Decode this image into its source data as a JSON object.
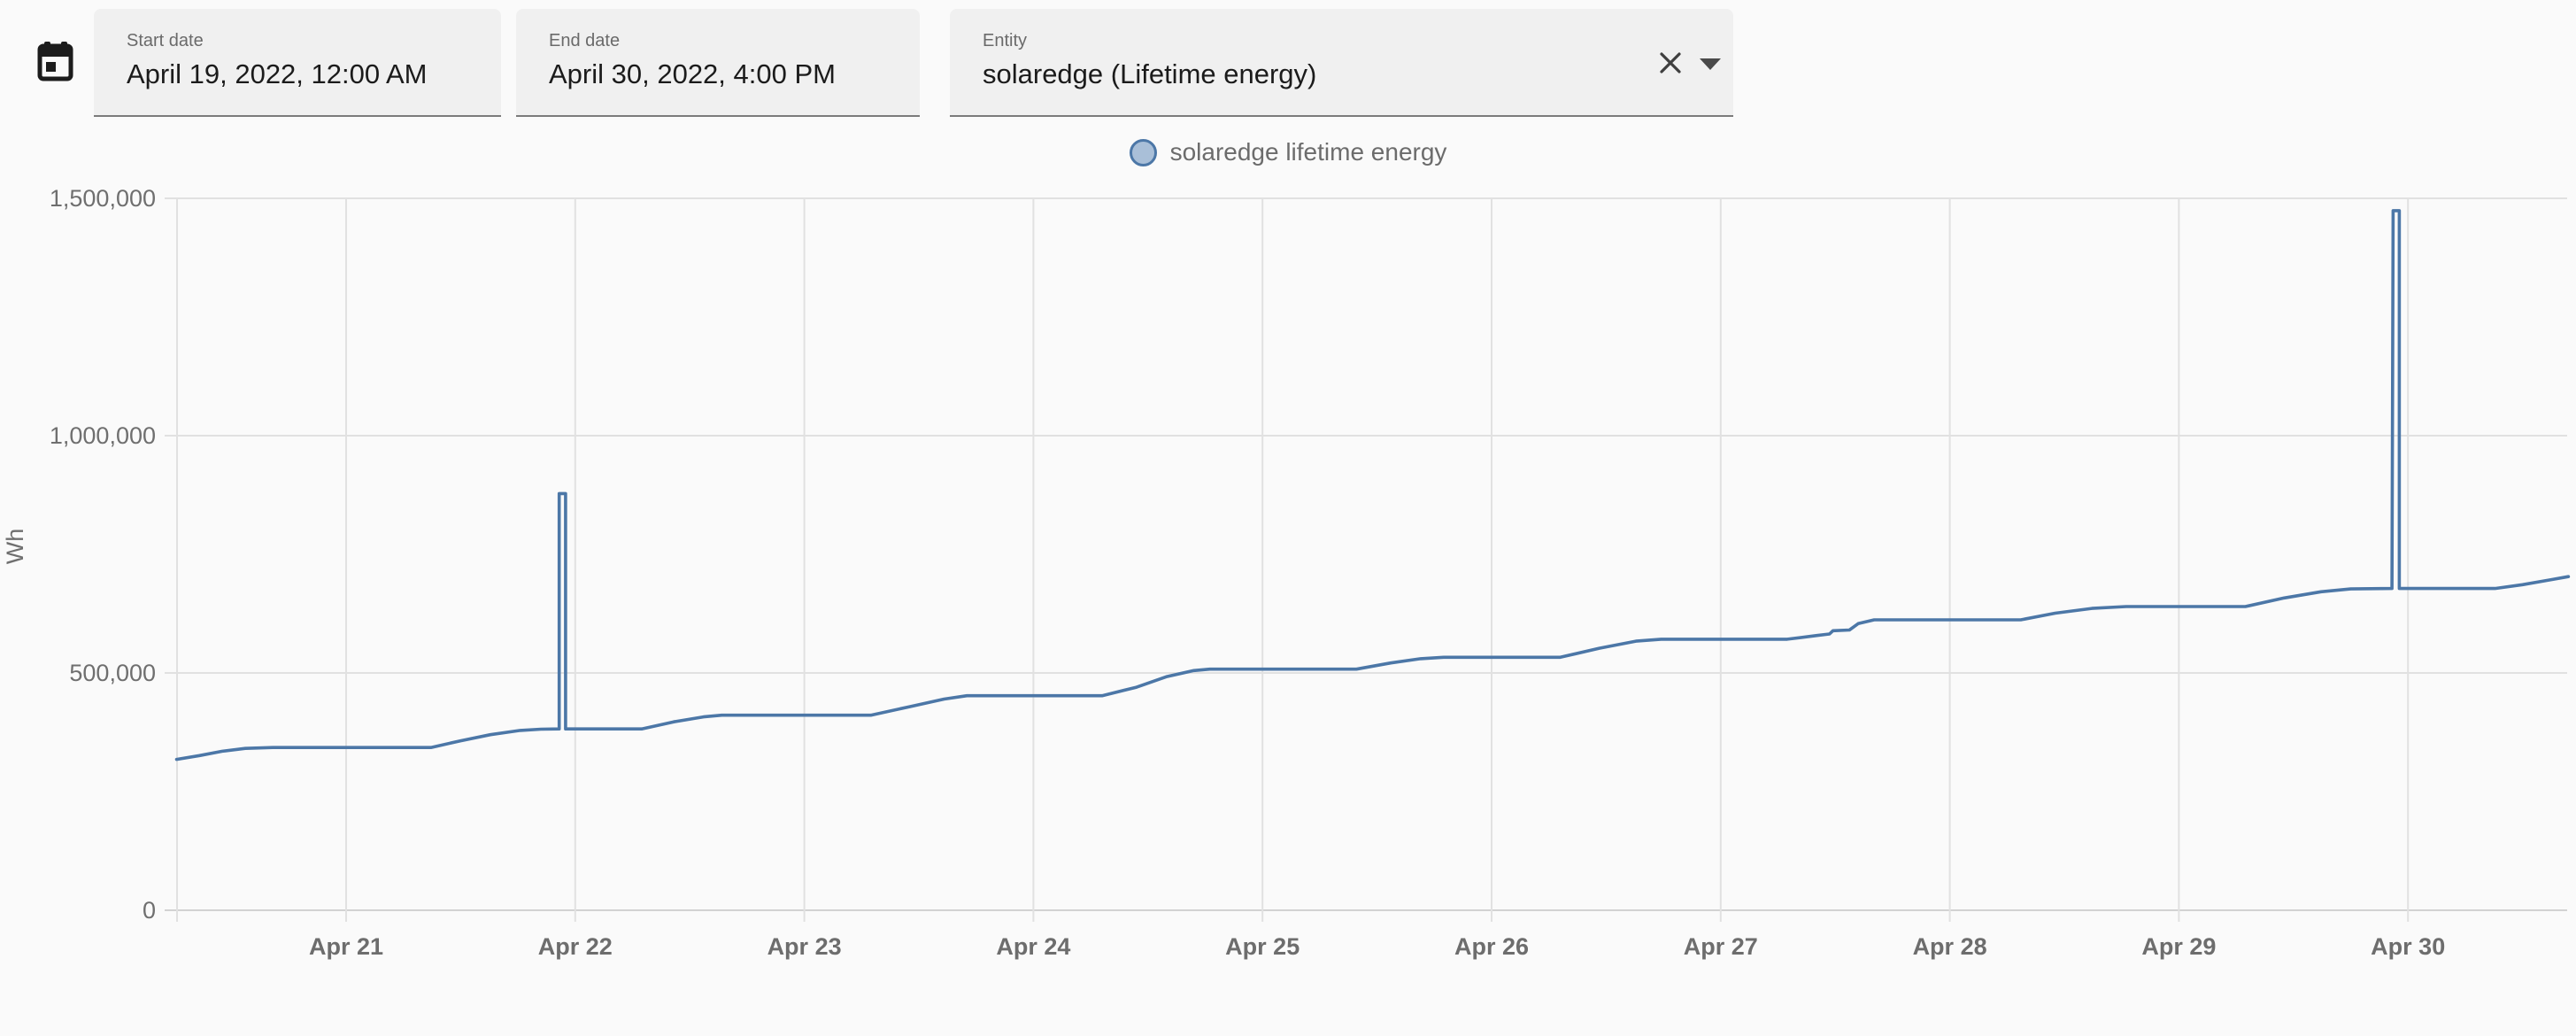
{
  "header": {
    "calendar_icon": "calendar-icon",
    "start_date": {
      "label": "Start date",
      "value": "April 19, 2022, 12:00 AM"
    },
    "end_date": {
      "label": "End date",
      "value": "April 30, 2022, 4:00 PM"
    },
    "entity": {
      "label": "Entity",
      "value": "solaredge (Lifetime energy)",
      "clear_icon": "close-x-icon",
      "dropdown_icon": "caret-down-icon"
    }
  },
  "legend": {
    "marker": "circle",
    "label": "solaredge lifetime energy"
  },
  "colors": {
    "page_bg": "#fafafa",
    "field_bg": "#f0f0f0",
    "field_underline": "#7b7b7b",
    "icon": "#1c1c1c",
    "series_line": "#4c77a7",
    "legend_fill": "#a9bfd8",
    "gridline": "#e1e1e1",
    "axis_line": "#d2d2d2",
    "tick_text": "#6f6f6f"
  },
  "chart_data": {
    "type": "line",
    "title": "",
    "xlabel": "",
    "ylabel": "Wh",
    "unit": "Wh",
    "grid": true,
    "legend_position": "top-center",
    "ylim": [
      0,
      1500000
    ],
    "x_range_days_since_apr20": [
      0.26,
      10.7
    ],
    "x_axis_kind": "time",
    "y_ticks": [
      {
        "v": 0,
        "label": "0"
      },
      {
        "v": 500000,
        "label": "500,000"
      },
      {
        "v": 1000000,
        "label": "1,000,000"
      },
      {
        "v": 1500000,
        "label": "1,500,000"
      }
    ],
    "x_ticks": [
      {
        "t": 1,
        "label": "Apr 21"
      },
      {
        "t": 2,
        "label": "Apr 22"
      },
      {
        "t": 3,
        "label": "Apr 23"
      },
      {
        "t": 4,
        "label": "Apr 24"
      },
      {
        "t": 5,
        "label": "Apr 25"
      },
      {
        "t": 6,
        "label": "Apr 26"
      },
      {
        "t": 7,
        "label": "Apr 27"
      },
      {
        "t": 8,
        "label": "Apr 28"
      },
      {
        "t": 9,
        "label": "Apr 29"
      },
      {
        "t": 10,
        "label": "Apr 30"
      }
    ],
    "series": [
      {
        "name": "solaredge lifetime energy",
        "color": "#4c77a7",
        "points": [
          [
            0.26,
            318000
          ],
          [
            0.36,
            326000
          ],
          [
            0.46,
            335000
          ],
          [
            0.56,
            341000
          ],
          [
            0.68,
            343000
          ],
          [
            1.37,
            343000
          ],
          [
            1.5,
            357000
          ],
          [
            1.63,
            370000
          ],
          [
            1.76,
            379000
          ],
          [
            1.85,
            381500
          ],
          [
            1.93,
            382000
          ],
          [
            1.93,
            878000
          ],
          [
            1.958,
            878000
          ],
          [
            1.958,
            382000
          ],
          [
            2.29,
            382000
          ],
          [
            2.43,
            397000
          ],
          [
            2.56,
            407500
          ],
          [
            2.64,
            411000
          ],
          [
            3.29,
            411000
          ],
          [
            3.46,
            429000
          ],
          [
            3.61,
            445000
          ],
          [
            3.71,
            452000
          ],
          [
            4.3,
            452000
          ],
          [
            4.45,
            470000
          ],
          [
            4.58,
            492000
          ],
          [
            4.7,
            505000
          ],
          [
            4.77,
            508000
          ],
          [
            5.41,
            508000
          ],
          [
            5.56,
            521000
          ],
          [
            5.69,
            530000
          ],
          [
            5.79,
            533000
          ],
          [
            6.3,
            533000
          ],
          [
            6.47,
            552000
          ],
          [
            6.63,
            567000
          ],
          [
            6.74,
            571000
          ],
          [
            7.29,
            571000
          ],
          [
            7.42,
            579000
          ],
          [
            7.475,
            582000
          ],
          [
            7.49,
            589000
          ],
          [
            7.562,
            590500
          ],
          [
            7.6,
            604000
          ],
          [
            7.67,
            612000
          ],
          [
            8.31,
            612000
          ],
          [
            8.46,
            626000
          ],
          [
            8.62,
            636000
          ],
          [
            8.77,
            640000
          ],
          [
            9.29,
            640000
          ],
          [
            9.46,
            658000
          ],
          [
            9.62,
            671000
          ],
          [
            9.75,
            677000
          ],
          [
            9.93,
            678000
          ],
          [
            9.935,
            1474000
          ],
          [
            9.962,
            1474000
          ],
          [
            9.962,
            678000
          ],
          [
            10.38,
            678000
          ],
          [
            10.5,
            686000
          ],
          [
            10.62,
            696000
          ],
          [
            10.7,
            703000
          ]
        ]
      }
    ]
  }
}
